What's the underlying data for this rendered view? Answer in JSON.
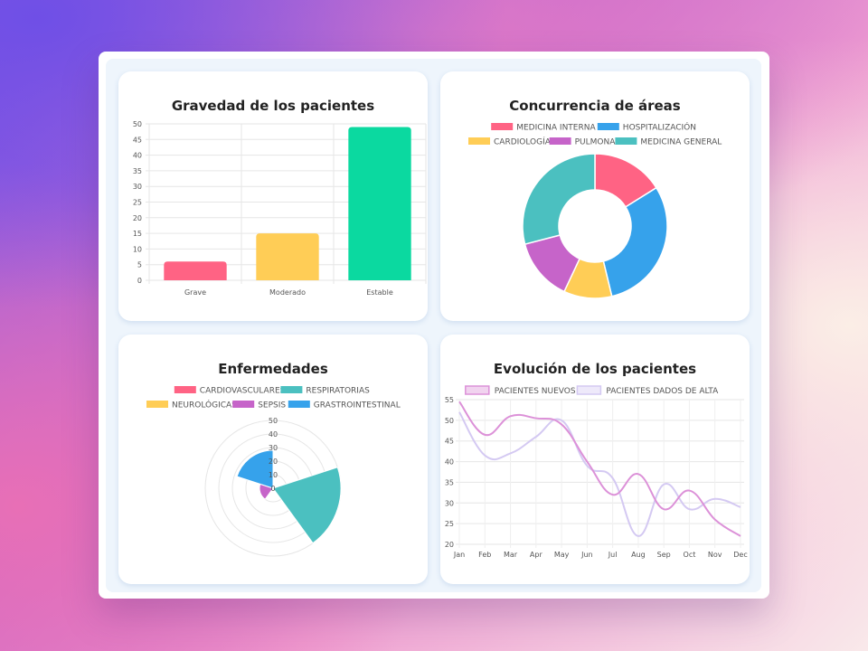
{
  "cards": {
    "gravedad": {
      "title": "Gravedad de los pacientes",
      "chart_data": {
        "type": "bar",
        "categories": [
          "Grave",
          "Moderado",
          "Estable"
        ],
        "values": [
          6,
          15,
          49
        ],
        "colors": [
          "#ff6384",
          "#ffcd56",
          "#0bd9a0"
        ],
        "ylim": [
          0,
          50
        ],
        "yticks": [
          0,
          5,
          10,
          15,
          20,
          25,
          30,
          35,
          40,
          45,
          50
        ],
        "grid": true
      }
    },
    "concurrencia": {
      "title": "Concurrencia de áreas",
      "chart_data": {
        "type": "pie",
        "donut": true,
        "labels": [
          "MEDICINA INTERNA",
          "HOSPITALIZACIÓN",
          "CARDIOLOGÍA",
          "PULMONAR",
          "MEDICINA GENERAL"
        ],
        "values": [
          15,
          28,
          10,
          13,
          27
        ],
        "colors": [
          "#ff6384",
          "#36a2eb",
          "#ffcd56",
          "#c664c9",
          "#4bc0c0"
        ],
        "legend": "top"
      }
    },
    "enfermedades": {
      "title": "Enfermedades",
      "chart_data": {
        "type": "polar-area",
        "labels": [
          "CARDIOVASCULARES",
          "RESPIRATORIAS",
          "NEUROLÓGICAS",
          "SEPSIS",
          "GRASTROINTESTINAL"
        ],
        "values": [
          0,
          50,
          0,
          10,
          28
        ],
        "colors": [
          "#ff6384",
          "#4bc0c0",
          "#ffcd56",
          "#c664c9",
          "#36a2eb"
        ],
        "rlim": [
          0,
          50
        ],
        "rticks": [
          0,
          10,
          20,
          30,
          40,
          50
        ],
        "legend": "top"
      }
    },
    "evolucion": {
      "title": "Evolución de los pacientes",
      "chart_data": {
        "type": "line",
        "categories": [
          "Jan",
          "Feb",
          "Mar",
          "Apr",
          "May",
          "Jun",
          "Jul",
          "Aug",
          "Sep",
          "Oct",
          "Nov",
          "Dec"
        ],
        "series": [
          {
            "name": "PACIENTES NUEVOS",
            "values": [
              54.5,
              46.5,
              51,
              50.5,
              49,
              40,
              32,
              37,
              28.5,
              33,
              26,
              22
            ],
            "color": "#dc91d8"
          },
          {
            "name": "PACIENTES DADOS DE ALTA",
            "values": [
              52,
              41.5,
              42,
              46,
              50,
              39,
              36,
              22,
              34.5,
              28.5,
              31,
              29
            ],
            "color": "#d4c9f2"
          }
        ],
        "ylim": [
          20,
          55
        ],
        "yticks": [
          20,
          25,
          30,
          35,
          40,
          45,
          50,
          55
        ],
        "grid": true,
        "legend": "top"
      }
    }
  }
}
